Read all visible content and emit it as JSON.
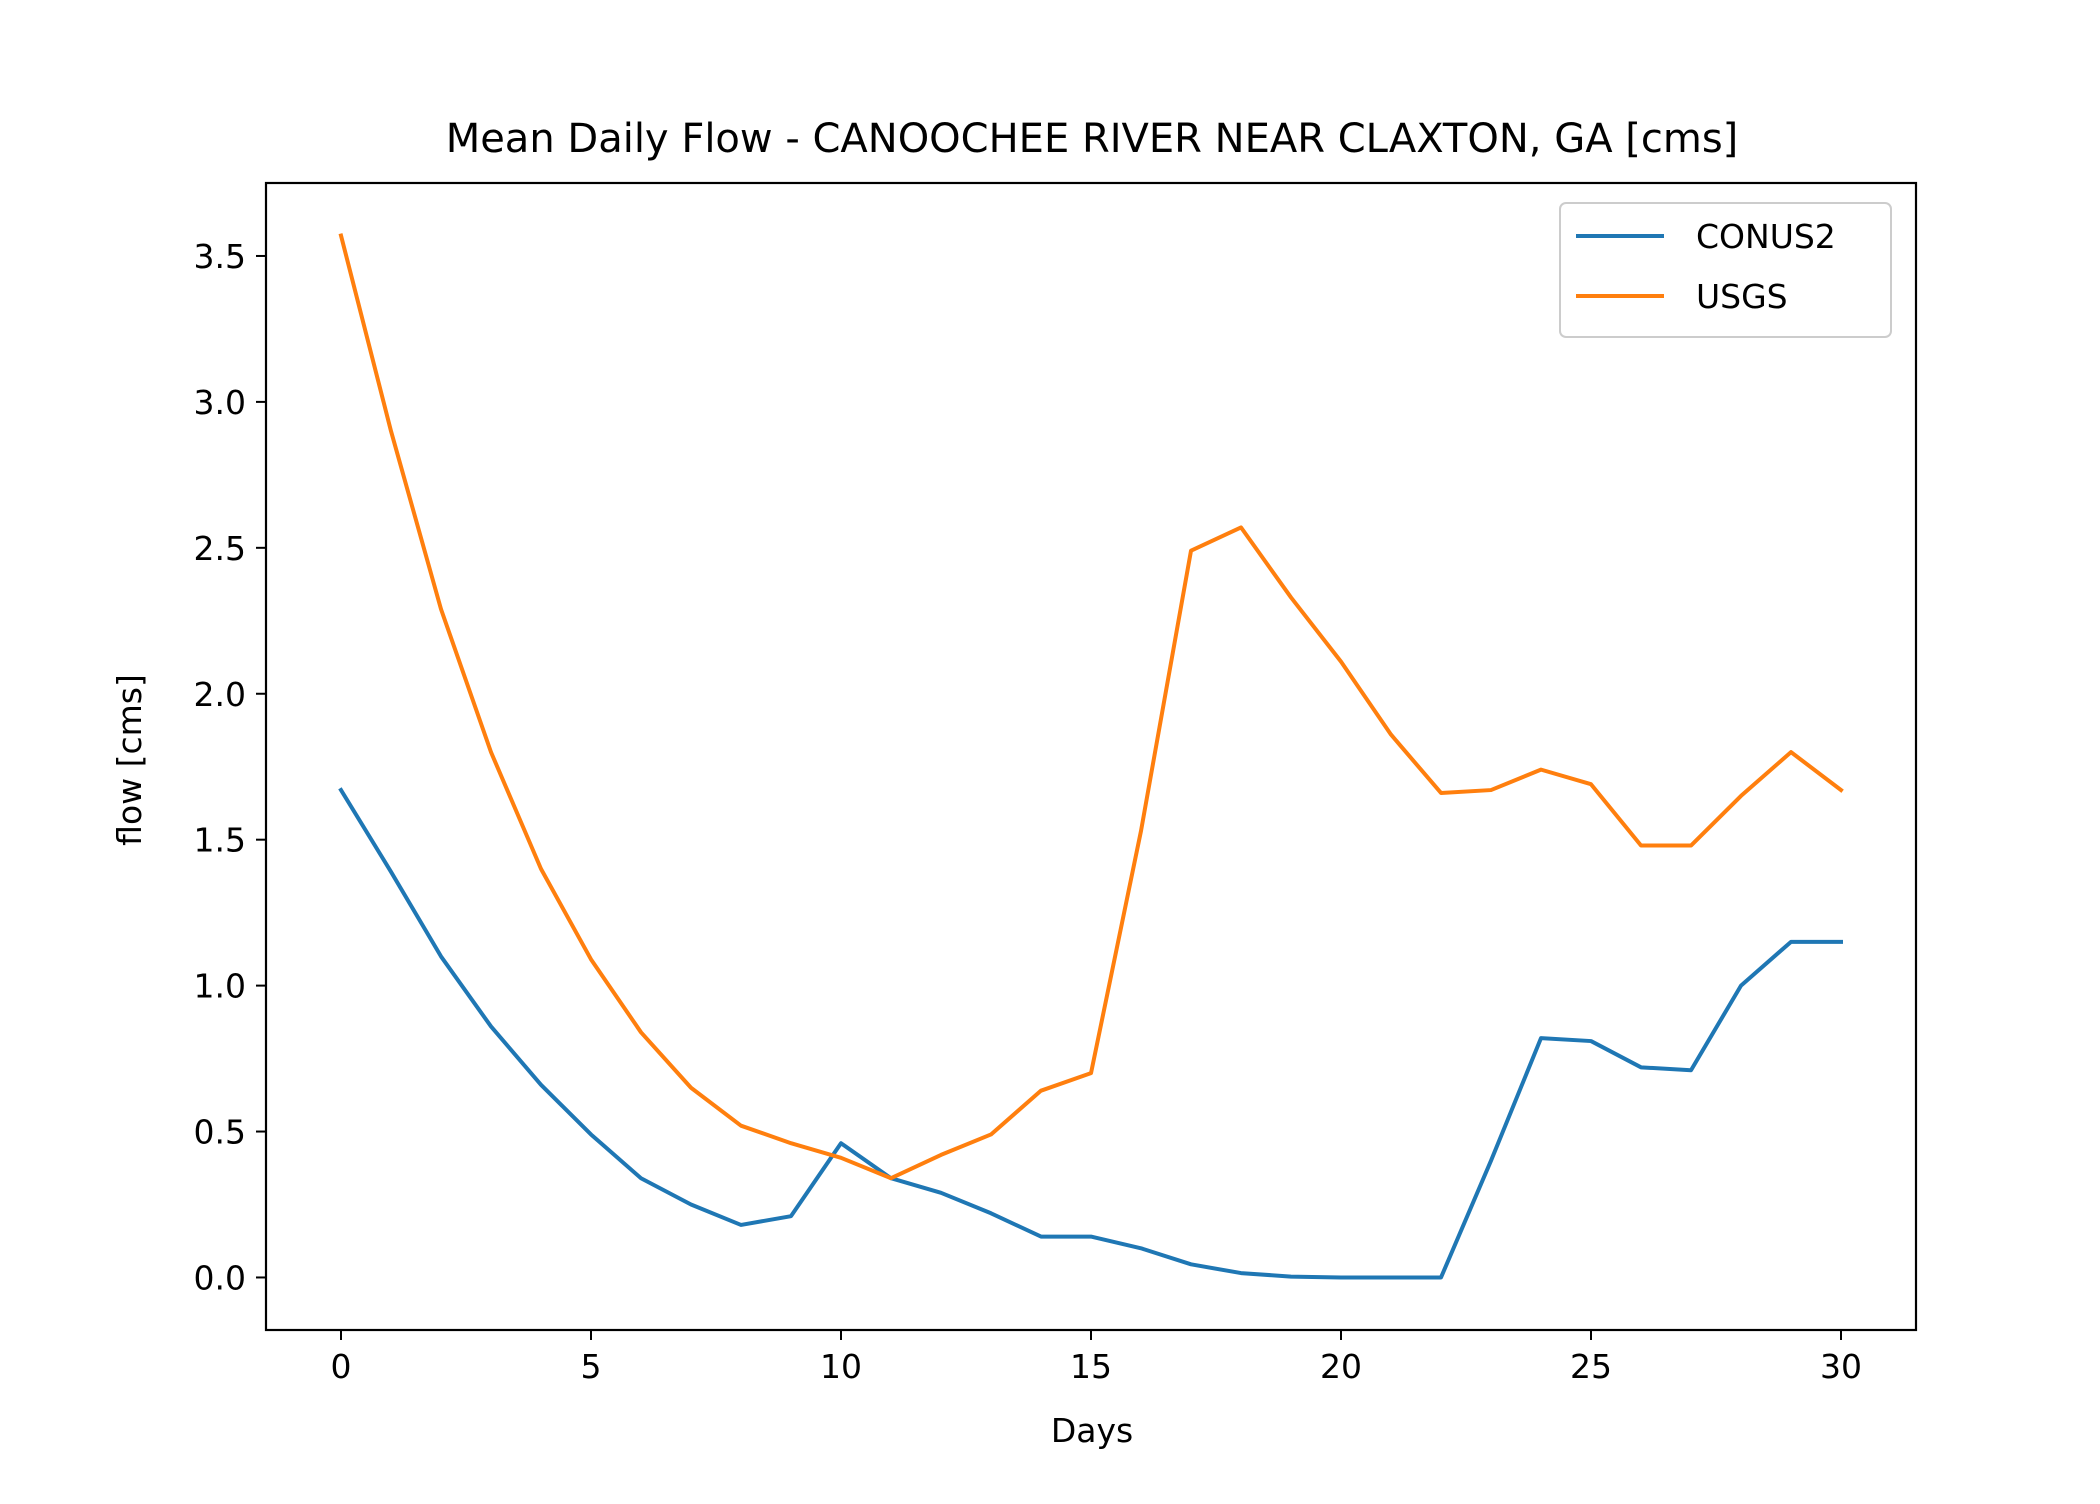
{
  "chart_data": {
    "type": "line",
    "title": "Mean Daily Flow - CANOOCHEE RIVER NEAR CLAXTON, GA [cms]",
    "xlabel": "Days",
    "ylabel": "flow [cms]",
    "xlim": [
      -1.5,
      31.5
    ],
    "ylim": [
      -0.18,
      3.75
    ],
    "x_ticks": [
      0,
      5,
      10,
      15,
      20,
      25,
      30
    ],
    "x_tick_labels": [
      "0",
      "5",
      "10",
      "15",
      "20",
      "25",
      "30"
    ],
    "y_ticks": [
      0.0,
      0.5,
      1.0,
      1.5,
      2.0,
      2.5,
      3.0,
      3.5
    ],
    "y_tick_labels": [
      "0.0",
      "0.5",
      "1.0",
      "1.5",
      "2.0",
      "2.5",
      "3.0",
      "3.5"
    ],
    "grid": false,
    "legend": "top-right",
    "x": [
      0,
      1,
      2,
      3,
      4,
      5,
      6,
      7,
      8,
      9,
      10,
      11,
      12,
      13,
      14,
      15,
      16,
      17,
      18,
      19,
      20,
      21,
      22,
      23,
      24,
      25,
      26,
      27,
      28,
      29,
      30
    ],
    "series": [
      {
        "name": "CONUS2",
        "color": "#1f77b4",
        "values": [
          1.67,
          1.39,
          1.1,
          0.86,
          0.66,
          0.49,
          0.34,
          0.25,
          0.18,
          0.21,
          0.46,
          0.34,
          0.29,
          0.22,
          0.14,
          0.14,
          0.1,
          0.045,
          0.015,
          0.003,
          0.0,
          0.0,
          0.0,
          0.4,
          0.82,
          0.81,
          0.72,
          0.71,
          1.0,
          1.15,
          1.15
        ]
      },
      {
        "name": "USGS",
        "color": "#ff7f0e",
        "values": [
          3.57,
          2.9,
          2.29,
          1.8,
          1.4,
          1.09,
          0.84,
          0.65,
          0.52,
          0.46,
          0.41,
          0.34,
          0.42,
          0.49,
          0.64,
          0.7,
          1.53,
          2.49,
          2.57,
          2.33,
          2.11,
          1.86,
          1.66,
          1.67,
          1.74,
          1.69,
          1.48,
          1.48,
          1.65,
          1.8,
          1.67
        ]
      }
    ]
  }
}
